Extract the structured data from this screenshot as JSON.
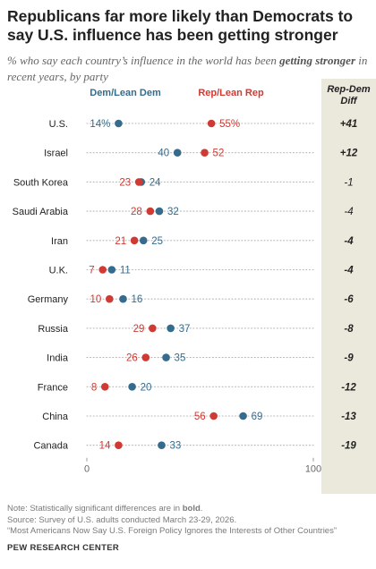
{
  "title": "Republicans far more likely than Democrats to say U.S. influence has been getting stronger",
  "subtitle": {
    "pre": "% who say each country’s influence in the world has been ",
    "emph": "getting stronger",
    "post": " in recent years, by party"
  },
  "notes": {
    "note_pre": "Note: Statistically significant differences are in ",
    "note_bold": "bold",
    "note_post": ".",
    "source": "Source: Survey of U.S. adults conducted March 23-29, 2026.",
    "report": "“Most Americans Now Say U.S. Foreign Policy Ignores the Interests of Other Countries”",
    "org": "PEW RESEARCH CENTER"
  },
  "colors": {
    "dem": "#356b8c",
    "rep": "#cf3a33",
    "diff_panel": "#ebe8dc",
    "dots": "#b8b8b8"
  },
  "chart_data": {
    "type": "dot-plot",
    "xlim": [
      0,
      100
    ],
    "x_ticks": [
      "0",
      "100"
    ],
    "legend": {
      "dem": "Dem/Lean Dem",
      "rep": "Rep/Lean Rep"
    },
    "diff_header": "Rep-Dem\nDiff",
    "categories": [
      "U.S.",
      "Israel",
      "South Korea",
      "Saudi Arabia",
      "Iran",
      "U.K.",
      "Germany",
      "Russia",
      "India",
      "France",
      "China",
      "Canada"
    ],
    "series": [
      {
        "name": "Dem/Lean Dem",
        "values": [
          14,
          40,
          24,
          32,
          25,
          11,
          16,
          37,
          35,
          20,
          69,
          33
        ]
      },
      {
        "name": "Rep/Lean Rep",
        "values": [
          55,
          52,
          23,
          28,
          21,
          7,
          10,
          29,
          26,
          8,
          56,
          14
        ]
      }
    ],
    "first_row_suffix": "%",
    "diff": [
      "+41",
      "+12",
      "-1",
      "-4",
      "-4",
      "-4",
      "-6",
      "-8",
      "-9",
      "-12",
      "-13",
      "-19"
    ],
    "diff_significant": [
      true,
      true,
      false,
      false,
      true,
      true,
      true,
      true,
      true,
      true,
      true,
      true
    ]
  }
}
